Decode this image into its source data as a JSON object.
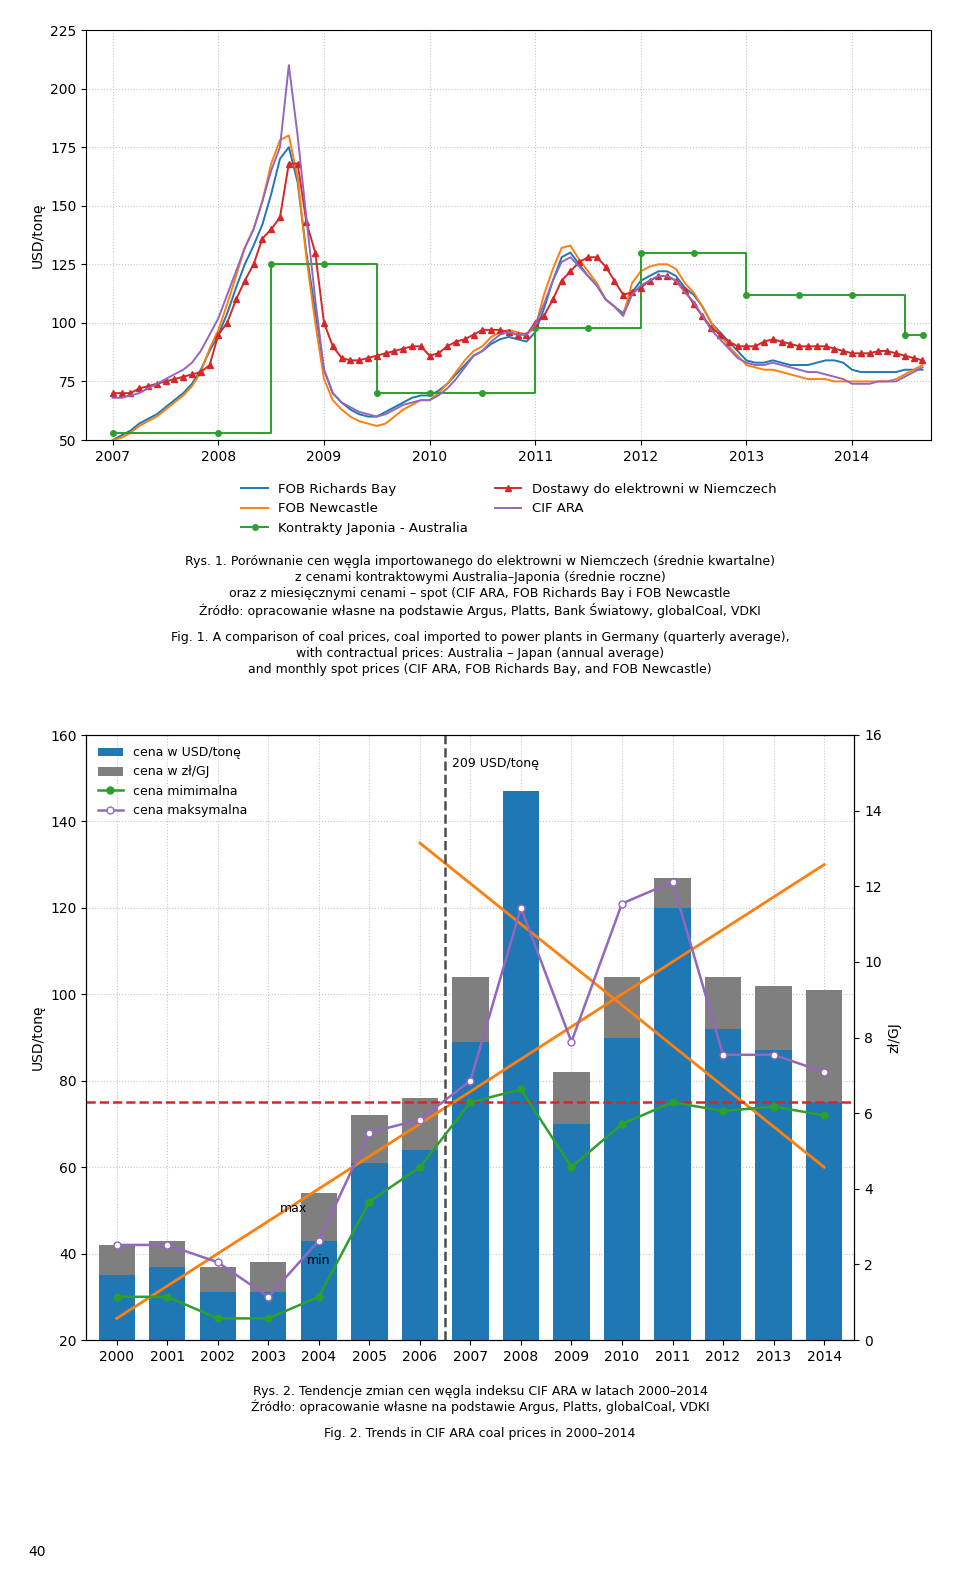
{
  "page_number": "40",
  "chart_data": [
    {
      "type": "line",
      "title": [
        "Rys. 1. Porównanie cen węgla importowanego do elektrowni w Niemczech (średnie kwartalne)",
        "z cenami kontraktowymi Australia–Japonia (średnie roczne)",
        "oraz z miesięcznymi cenami – spot (CIF ARA, FOB Richards Bay i FOB Newcastle",
        "Źródło: opracowanie własne na podstawie Argus, Platts, Bank Światowy, globalCoal, VDKI"
      ],
      "subtitle": [
        "Fig. 1. A comparison of coal prices, coal imported to power plants in Germany (quarterly average),",
        "with contractual prices: Australia – Japan (annual average)",
        "and monthly spot prices (CIF ARA, FOB Richards Bay, and FOB Newcastle)"
      ],
      "ylabel": "USD/tonę",
      "ylim": [
        50,
        225
      ],
      "yticks": [
        50,
        75,
        100,
        125,
        150,
        175,
        200,
        225
      ],
      "xlim": [
        2006.75,
        2014.75
      ],
      "xticks": [
        2007,
        2008,
        2009,
        2010,
        2011,
        2012,
        2013,
        2014
      ],
      "grid": true,
      "legend": "upper center",
      "x": [
        2007.0,
        2007.083,
        2007.167,
        2007.25,
        2007.333,
        2007.417,
        2007.5,
        2007.583,
        2007.667,
        2007.75,
        2007.833,
        2007.917,
        2008.0,
        2008.083,
        2008.167,
        2008.25,
        2008.333,
        2008.417,
        2008.5,
        2008.583,
        2008.667,
        2008.75,
        2008.833,
        2008.917,
        2009.0,
        2009.083,
        2009.167,
        2009.25,
        2009.333,
        2009.417,
        2009.5,
        2009.583,
        2009.667,
        2009.75,
        2009.833,
        2009.917,
        2010.0,
        2010.083,
        2010.167,
        2010.25,
        2010.333,
        2010.417,
        2010.5,
        2010.583,
        2010.667,
        2010.75,
        2010.833,
        2010.917,
        2011.0,
        2011.083,
        2011.167,
        2011.25,
        2011.333,
        2011.417,
        2011.5,
        2011.583,
        2011.667,
        2011.75,
        2011.833,
        2011.917,
        2012.0,
        2012.083,
        2012.167,
        2012.25,
        2012.333,
        2012.417,
        2012.5,
        2012.583,
        2012.667,
        2012.75,
        2012.833,
        2012.917,
        2013.0,
        2013.083,
        2013.167,
        2013.25,
        2013.333,
        2013.417,
        2013.5,
        2013.583,
        2013.667,
        2013.75,
        2013.833,
        2013.917,
        2014.0,
        2014.083,
        2014.167,
        2014.25,
        2014.333,
        2014.417,
        2014.5,
        2014.583,
        2014.667
      ],
      "series": [
        {
          "name": "FOB Richards Bay",
          "values": [
            50,
            52,
            54,
            57,
            59,
            61,
            64,
            67,
            70,
            74,
            80,
            88,
            95,
            104,
            115,
            125,
            133,
            142,
            155,
            170,
            175,
            160,
            130,
            105,
            80,
            70,
            66,
            63,
            61,
            60,
            60,
            62,
            64,
            66,
            68,
            69,
            69,
            71,
            74,
            78,
            82,
            86,
            88,
            91,
            93,
            94,
            93,
            92,
            96,
            106,
            118,
            128,
            130,
            125,
            120,
            116,
            110,
            107,
            104,
            113,
            118,
            120,
            122,
            122,
            120,
            115,
            112,
            107,
            100,
            96,
            92,
            88,
            84,
            83,
            83,
            84,
            83,
            82,
            82,
            82,
            83,
            84,
            84,
            83,
            80,
            79,
            79,
            79,
            79,
            79,
            80,
            80,
            80
          ]
        },
        {
          "name": "FOB Newcastle",
          "values": [
            50,
            51,
            53,
            56,
            58,
            60,
            63,
            66,
            69,
            73,
            79,
            89,
            97,
            108,
            120,
            132,
            140,
            152,
            168,
            178,
            180,
            162,
            128,
            100,
            76,
            67,
            63,
            60,
            58,
            57,
            56,
            57,
            60,
            63,
            65,
            67,
            67,
            70,
            74,
            79,
            84,
            88,
            90,
            94,
            96,
            97,
            96,
            95,
            98,
            112,
            123,
            132,
            133,
            127,
            122,
            117,
            110,
            107,
            103,
            117,
            122,
            124,
            125,
            125,
            123,
            117,
            113,
            107,
            100,
            95,
            90,
            86,
            82,
            81,
            80,
            80,
            79,
            78,
            77,
            76,
            76,
            76,
            75,
            75,
            75,
            75,
            75,
            75,
            75,
            76,
            78,
            80,
            82
          ]
        },
        {
          "name": "Kontrakty Japonia - Australia",
          "line_style": "steps",
          "marker": "o",
          "x": [
            2007.0,
            2008.0,
            2008.5,
            2009.0,
            2009.5,
            2010.0,
            2010.5,
            2011.0,
            2011.5,
            2012.0,
            2012.5,
            2013.0,
            2013.5,
            2014.0,
            2014.5,
            2014.67
          ],
          "values": [
            53,
            53,
            125,
            125,
            70,
            70,
            70,
            98,
            98,
            130,
            130,
            112,
            112,
            112,
            95,
            95
          ]
        },
        {
          "name": "Dostawy do elektrowni w Niemczech",
          "marker": "^",
          "values": [
            70,
            70,
            70,
            72,
            73,
            74,
            75,
            76,
            77,
            78,
            79,
            82,
            95,
            100,
            110,
            118,
            125,
            136,
            140,
            145,
            168,
            168,
            143,
            130,
            100,
            90,
            85,
            84,
            84,
            85,
            86,
            87,
            88,
            89,
            90,
            90,
            86,
            87,
            90,
            92,
            93,
            95,
            97,
            97,
            97,
            96,
            95,
            95,
            100,
            103,
            110,
            118,
            122,
            126,
            128,
            128,
            124,
            118,
            112,
            113,
            115,
            118,
            120,
            120,
            118,
            114,
            108,
            103,
            98,
            95,
            92,
            90,
            90,
            90,
            92,
            93,
            92,
            91,
            90,
            90,
            90,
            90,
            89,
            88,
            87,
            87,
            87,
            88,
            88,
            87,
            86,
            85,
            84
          ]
        },
        {
          "name": "CIF ARA",
          "values": [
            68,
            68,
            69,
            70,
            72,
            74,
            76,
            78,
            80,
            83,
            88,
            95,
            102,
            112,
            122,
            132,
            140,
            152,
            165,
            175,
            210,
            180,
            145,
            110,
            80,
            70,
            66,
            64,
            62,
            61,
            60,
            61,
            63,
            65,
            66,
            67,
            67,
            69,
            72,
            76,
            81,
            86,
            88,
            92,
            95,
            96,
            95,
            95,
            99,
            108,
            118,
            126,
            128,
            124,
            120,
            116,
            110,
            107,
            103,
            112,
            116,
            118,
            120,
            120,
            118,
            113,
            109,
            103,
            97,
            93,
            89,
            85,
            83,
            82,
            82,
            83,
            82,
            81,
            80,
            79,
            79,
            78,
            77,
            76,
            74,
            74,
            74,
            75,
            75,
            75,
            77,
            79,
            81
          ]
        }
      ]
    },
    {
      "type": "bar",
      "title": [
        "Rys. 2. Tendencje zmian cen węgla indeksu CIF ARA w latach 2000–2014",
        "Źródło: opracowanie własne na podstawie Argus, Platts, globalCoal, VDKI"
      ],
      "subtitle": [
        "Fig. 2. Trends in CIF ARA coal prices in 2000–2014"
      ],
      "ylabel": "USD/tonę",
      "y2label": "zł/GJ",
      "ylim": [
        20,
        160
      ],
      "yticks": [
        20,
        40,
        60,
        80,
        100,
        120,
        140,
        160
      ],
      "y2lim": [
        0,
        16
      ],
      "y2ticks": [
        0,
        2,
        4,
        6,
        8,
        10,
        12,
        14,
        16
      ],
      "grid": true,
      "legend": "upper left",
      "stacked": false,
      "categories": [
        "2000",
        "2001",
        "2002",
        "2003",
        "2004",
        "2005",
        "2006",
        "2007",
        "2008",
        "2009",
        "2010",
        "2011",
        "2012",
        "2013",
        "2014"
      ],
      "series": [
        {
          "name": "cena w USD/tonę",
          "type": "bar",
          "values": [
            35,
            37,
            31,
            31,
            43,
            61,
            64,
            89,
            147,
            70,
            90,
            120,
            92,
            87,
            75
          ]
        },
        {
          "name": "cena w zł/GJ",
          "type": "bar",
          "values": [
            42,
            43,
            37,
            38,
            54,
            72,
            76,
            104,
            143,
            82,
            104,
            127,
            104,
            102,
            101
          ]
        },
        {
          "name": "cena mimimalna",
          "type": "line",
          "marker": "o",
          "values": [
            30,
            30,
            25,
            25,
            30,
            52,
            60,
            75,
            78,
            60,
            70,
            75,
            73,
            74,
            72
          ]
        },
        {
          "name": "cena maksymalna",
          "type": "line",
          "marker": "open_circle",
          "values": [
            42,
            42,
            38,
            30,
            43,
            68,
            71,
            80,
            120,
            89,
            121,
            126,
            86,
            86,
            82
          ]
        }
      ],
      "trend_lines": [
        {
          "x": [
            "2000",
            "2014"
          ],
          "values": [
            25,
            130
          ]
        },
        {
          "x": [
            "2006",
            "2014"
          ],
          "values": [
            135,
            60
          ]
        }
      ],
      "hlines": [
        {
          "y": 75,
          "line_style": "dashed"
        }
      ],
      "vlines": [
        {
          "x": [
            "2006",
            "2007"
          ],
          "line_style": "dashed"
        }
      ],
      "annotations": [
        {
          "text": "209 USD/tonę",
          "x": [
            "2007",
            "2008"
          ],
          "y": 152
        },
        {
          "text": "max",
          "x": [
            "2003",
            "2004"
          ],
          "y": 49
        },
        {
          "text": "min",
          "x": "2004",
          "y": 37
        }
      ]
    }
  ]
}
